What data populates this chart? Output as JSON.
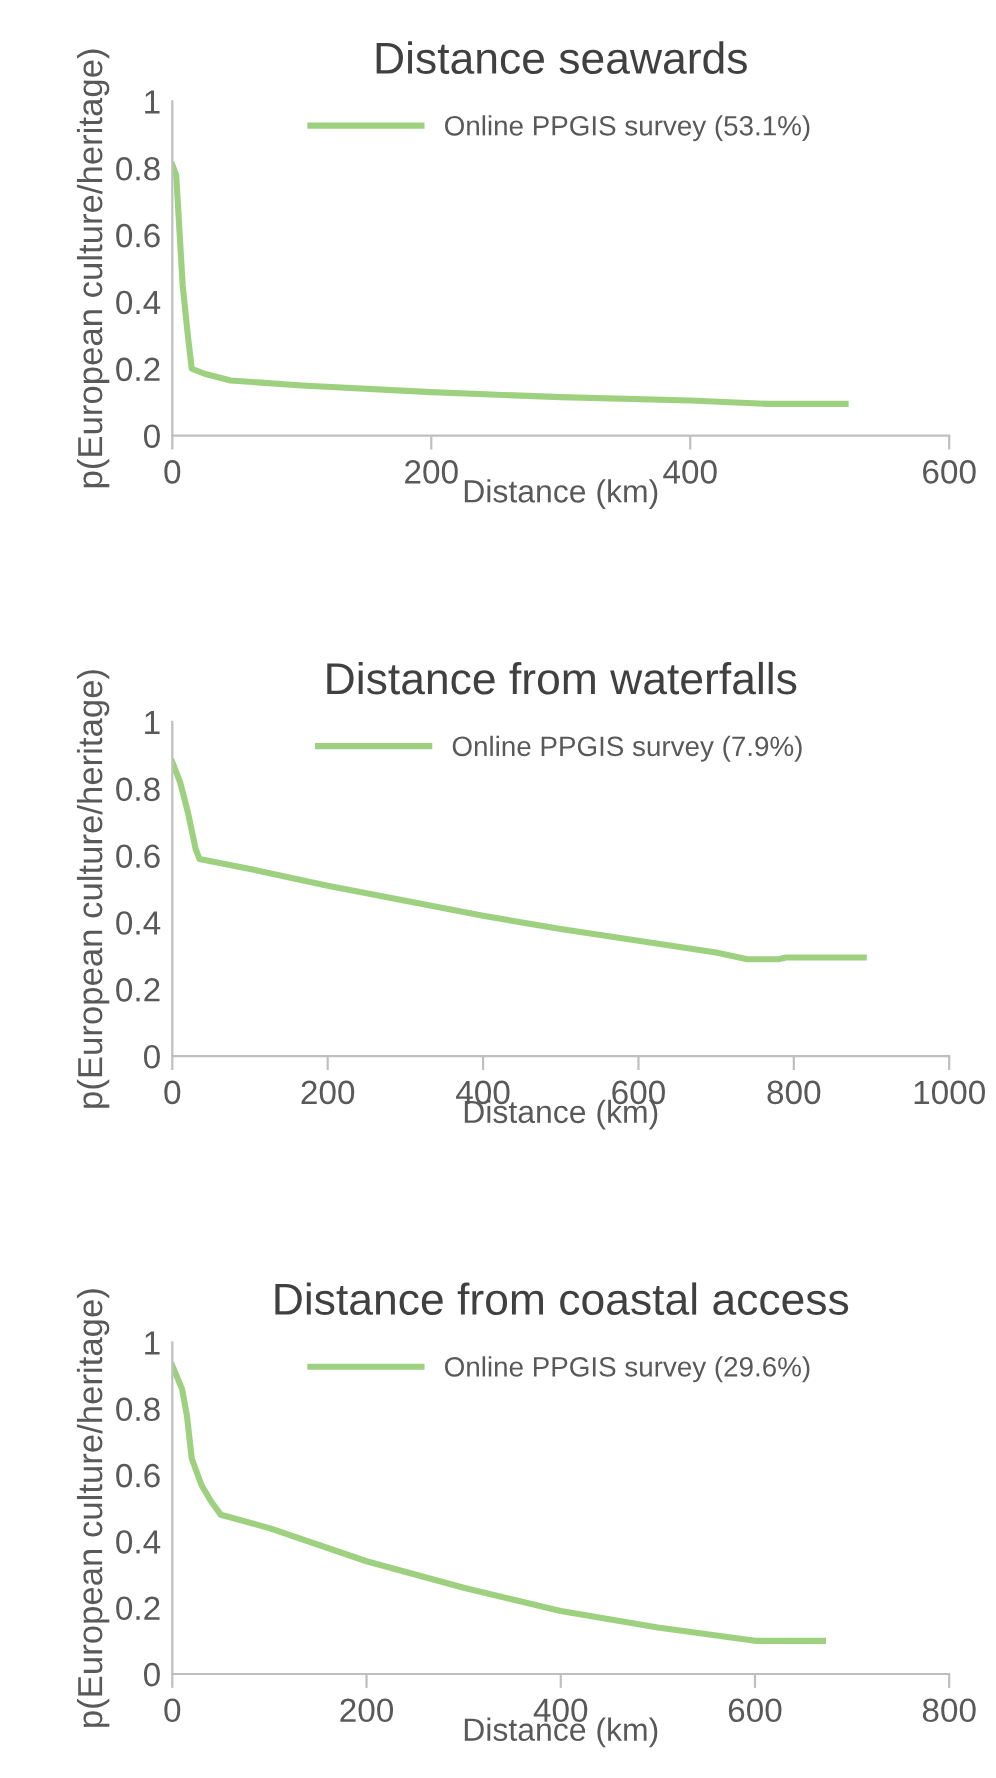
{
  "chart_data": [
    {
      "type": "line",
      "title": "Distance seawards",
      "xlabel": "Distance (km)",
      "ylabel": "p(European culture/heritage)",
      "xlim": [
        0,
        600
      ],
      "xticks": [
        0,
        200,
        400,
        600
      ],
      "ylim": [
        0,
        1
      ],
      "yticks": [
        0,
        0.2,
        0.4,
        0.6,
        0.8,
        1
      ],
      "grid": false,
      "legend": "top",
      "marker": "none",
      "line_style": "solid",
      "series": [
        {
          "name": "Online PPGIS survey (53.1%)",
          "color": "#9dd17f",
          "x": [
            0,
            3,
            8,
            12,
            15,
            25,
            45,
            100,
            200,
            300,
            400,
            460,
            520
          ],
          "values": [
            0.81,
            0.78,
            0.45,
            0.3,
            0.2,
            0.185,
            0.165,
            0.15,
            0.13,
            0.115,
            0.105,
            0.095,
            0.095
          ]
        }
      ]
    },
    {
      "type": "line",
      "title": "Distance from waterfalls",
      "xlabel": "Distance (km)",
      "ylabel": "p(European culture/heritage)",
      "xlim": [
        0,
        1000
      ],
      "xticks": [
        0,
        200,
        400,
        600,
        800,
        1000
      ],
      "ylim": [
        0,
        1
      ],
      "yticks": [
        0,
        0.2,
        0.4,
        0.6,
        0.8,
        1
      ],
      "grid": false,
      "legend": "top",
      "marker": "none",
      "line_style": "solid",
      "series": [
        {
          "name": "Online PPGIS survey (7.9%)",
          "color": "#9dd17f",
          "x": [
            0,
            10,
            20,
            30,
            35,
            100,
            200,
            300,
            400,
            500,
            600,
            700,
            740,
            780,
            790,
            890
          ],
          "values": [
            0.88,
            0.82,
            0.73,
            0.62,
            0.59,
            0.56,
            0.51,
            0.465,
            0.42,
            0.38,
            0.345,
            0.31,
            0.29,
            0.29,
            0.295,
            0.295
          ]
        }
      ]
    },
    {
      "type": "line",
      "title": "Distance from coastal access",
      "xlabel": "Distance (km)",
      "ylabel": "p(European culture/heritage)",
      "xlim": [
        0,
        800
      ],
      "xticks": [
        0,
        200,
        400,
        600,
        800
      ],
      "ylim": [
        0,
        1
      ],
      "yticks": [
        0,
        0.2,
        0.4,
        0.6,
        0.8,
        1
      ],
      "grid": false,
      "legend": "top",
      "marker": "none",
      "line_style": "solid",
      "series": [
        {
          "name": "Online PPGIS survey (29.6%)",
          "color": "#9dd17f",
          "x": [
            0,
            10,
            15,
            20,
            30,
            40,
            50,
            100,
            200,
            300,
            400,
            500,
            600,
            670
          ],
          "values": [
            0.93,
            0.86,
            0.78,
            0.65,
            0.57,
            0.52,
            0.48,
            0.44,
            0.34,
            0.26,
            0.19,
            0.14,
            0.1,
            0.1
          ]
        }
      ]
    }
  ]
}
